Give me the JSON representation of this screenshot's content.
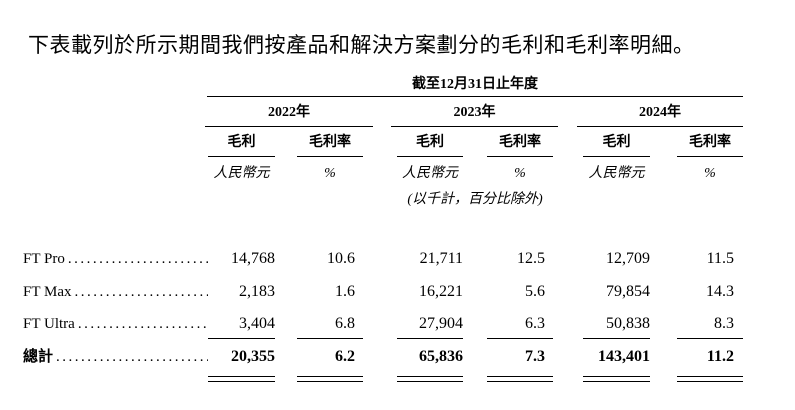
{
  "intro": "下表載列於所示期間我們按產品和解決方案劃分的毛利和毛利率明細。",
  "table": {
    "period_header": "截至12月31日止年度",
    "years": [
      "2022年",
      "2023年",
      "2024年"
    ],
    "columns": [
      {
        "header": "毛利",
        "unit": "人民幣元"
      },
      {
        "header": "毛利率",
        "unit": "%"
      },
      {
        "header": "毛利",
        "unit": "人民幣元"
      },
      {
        "header": "毛利率",
        "unit": "%"
      },
      {
        "header": "毛利",
        "unit": "人民幣元"
      },
      {
        "header": "毛利率",
        "unit": "%"
      }
    ],
    "note": "(以千計，百分比除外)",
    "rows": [
      {
        "label": "FT Pro",
        "values": [
          "14,768",
          "10.6",
          "21,711",
          "12.5",
          "12,709",
          "11.5"
        ]
      },
      {
        "label": "FT Max",
        "values": [
          "2,183",
          "1.6",
          "16,221",
          "5.6",
          "79,854",
          "14.3"
        ]
      },
      {
        "label": "FT Ultra",
        "values": [
          "3,404",
          "6.8",
          "27,904",
          "6.3",
          "50,838",
          "8.3"
        ]
      }
    ],
    "total": {
      "label": "總計",
      "values": [
        "20,355",
        "6.2",
        "65,836",
        "7.3",
        "143,401",
        "11.2"
      ]
    }
  },
  "dot_leader": "..........................................."
}
